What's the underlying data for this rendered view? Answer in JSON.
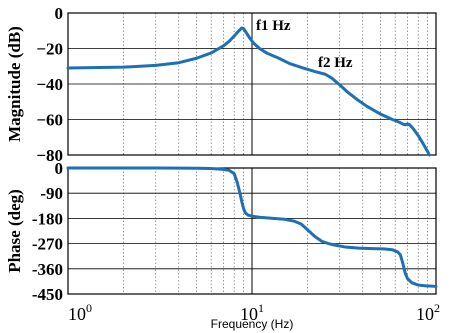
{
  "chart_data": [
    {
      "type": "line",
      "ylabel": "Magnitude (dB)",
      "xscale": "log",
      "xlim": [
        1,
        100
      ],
      "ylim": [
        -80,
        0
      ],
      "yticks": [
        0,
        -20,
        -40,
        -60,
        -80
      ],
      "ytick_labels": [
        "0",
        "−20",
        "−40",
        "−60",
        "−80"
      ],
      "grid": true,
      "color": "#1f6fb5",
      "annotations": [
        {
          "text": "f1 Hz",
          "x": 10,
          "y": -5
        },
        {
          "text": "f2 Hz",
          "x": 23,
          "y": -26
        }
      ],
      "x": [
        1,
        2,
        3,
        4,
        5,
        6,
        7,
        7.5,
        8,
        8.4,
        8.8,
        9,
        9.3,
        9.7,
        10.2,
        11,
        12,
        14,
        16,
        19,
        22,
        25,
        27,
        30,
        33,
        37,
        42,
        50,
        58,
        63,
        66,
        68,
        70,
        72,
        75,
        80,
        85,
        90,
        92
      ],
      "values": [
        -31,
        -30.5,
        -29.5,
        -28,
        -25.5,
        -22.5,
        -18.5,
        -16,
        -13,
        -10.5,
        -8.5,
        -8.8,
        -11,
        -14,
        -17,
        -20,
        -22.5,
        -25.5,
        -28.5,
        -31,
        -33,
        -34.5,
        -36.5,
        -40.5,
        -44.5,
        -48.5,
        -52.5,
        -57,
        -60,
        -61.5,
        -62.5,
        -63,
        -62.5,
        -63,
        -65,
        -69,
        -73.5,
        -78,
        -80
      ]
    },
    {
      "type": "line",
      "ylabel": "Phase (deg)",
      "xlabel": "Frequency  (Hz)",
      "xscale": "log",
      "xlim": [
        1,
        100
      ],
      "ylim": [
        -450,
        0
      ],
      "yticks": [
        0,
        -90,
        -180,
        -270,
        -360,
        -450
      ],
      "ytick_labels": [
        "0",
        "-90",
        "-180",
        "-270",
        "-360",
        "-450"
      ],
      "xticks": [
        1,
        10,
        100
      ],
      "xtick_labels": [
        "10",
        "10",
        "10"
      ],
      "xtick_exponents": [
        "0",
        "1",
        "2"
      ],
      "grid": true,
      "color": "#1f6fb5",
      "x": [
        1,
        2,
        3,
        4,
        5,
        6,
        7,
        7.5,
        8,
        8.3,
        8.6,
        8.8,
        9,
        9.2,
        9.5,
        10,
        11,
        13,
        15,
        17,
        18.5,
        20,
        22,
        24,
        26,
        28,
        32,
        38,
        45,
        52,
        58,
        62,
        64,
        66,
        68,
        70,
        74,
        80,
        88,
        95,
        100
      ],
      "values": [
        0,
        0,
        0,
        -0.5,
        -1,
        -2,
        -5,
        -8,
        -20,
        -50,
        -90,
        -120,
        -145,
        -160,
        -168,
        -172,
        -176,
        -180,
        -183,
        -190,
        -200,
        -220,
        -245,
        -262,
        -270,
        -275,
        -282,
        -286,
        -288,
        -289,
        -292,
        -300,
        -310,
        -340,
        -375,
        -395,
        -410,
        -418,
        -421,
        -422,
        -423
      ]
    }
  ]
}
